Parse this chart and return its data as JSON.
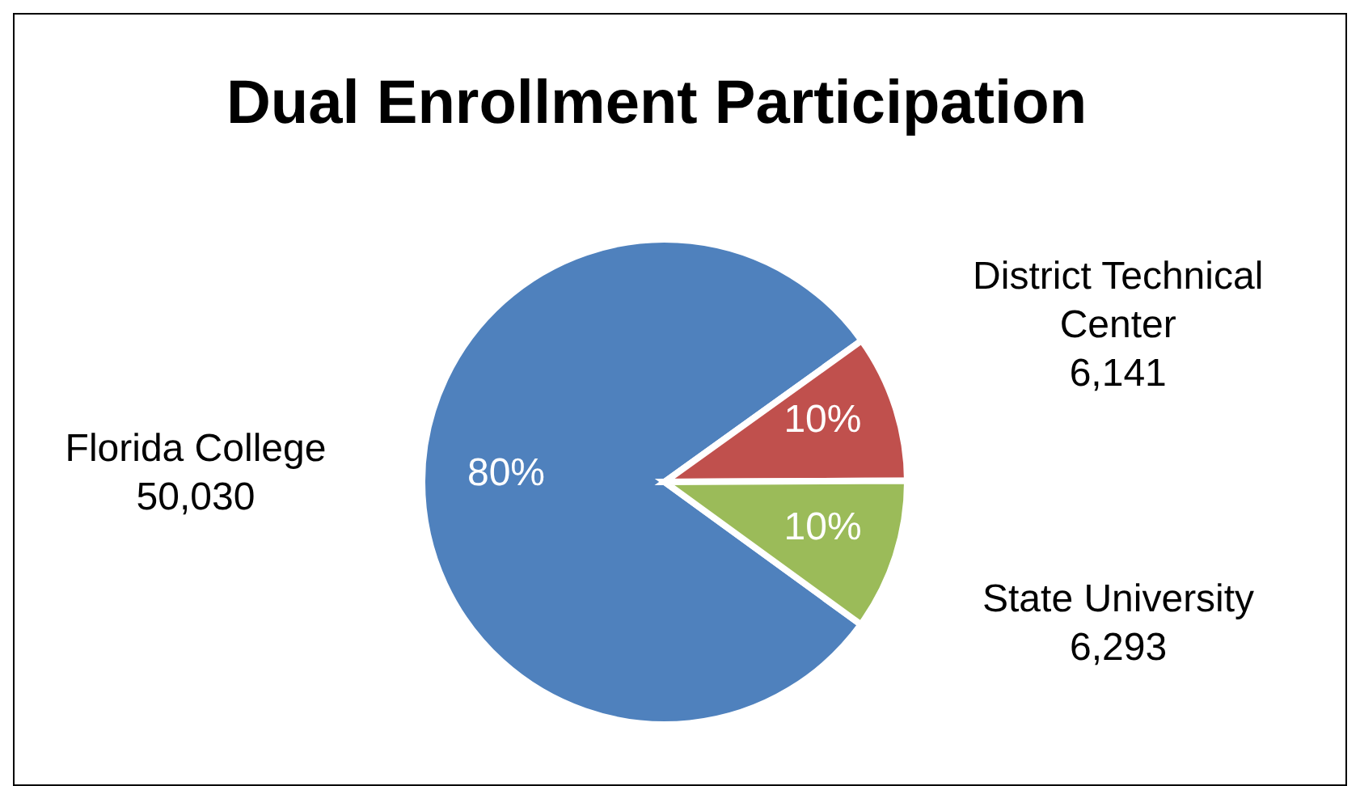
{
  "chart_data": {
    "type": "pie",
    "title": "Dual Enrollment Participation",
    "categories": [
      "Florida College",
      "District Technical Center",
      "State University"
    ],
    "values": [
      50030,
      6141,
      6293
    ],
    "value_labels": [
      "50,030",
      "6,141",
      "6,293"
    ],
    "colors": [
      "#4f81bd",
      "#c0504d",
      "#9bbb59"
    ],
    "legend": false,
    "annotations": [
      {
        "text": "80%",
        "x": "Florida College"
      },
      {
        "text": "10%",
        "x": "District Technical Center"
      },
      {
        "text": "10%",
        "x": "State University"
      }
    ]
  }
}
